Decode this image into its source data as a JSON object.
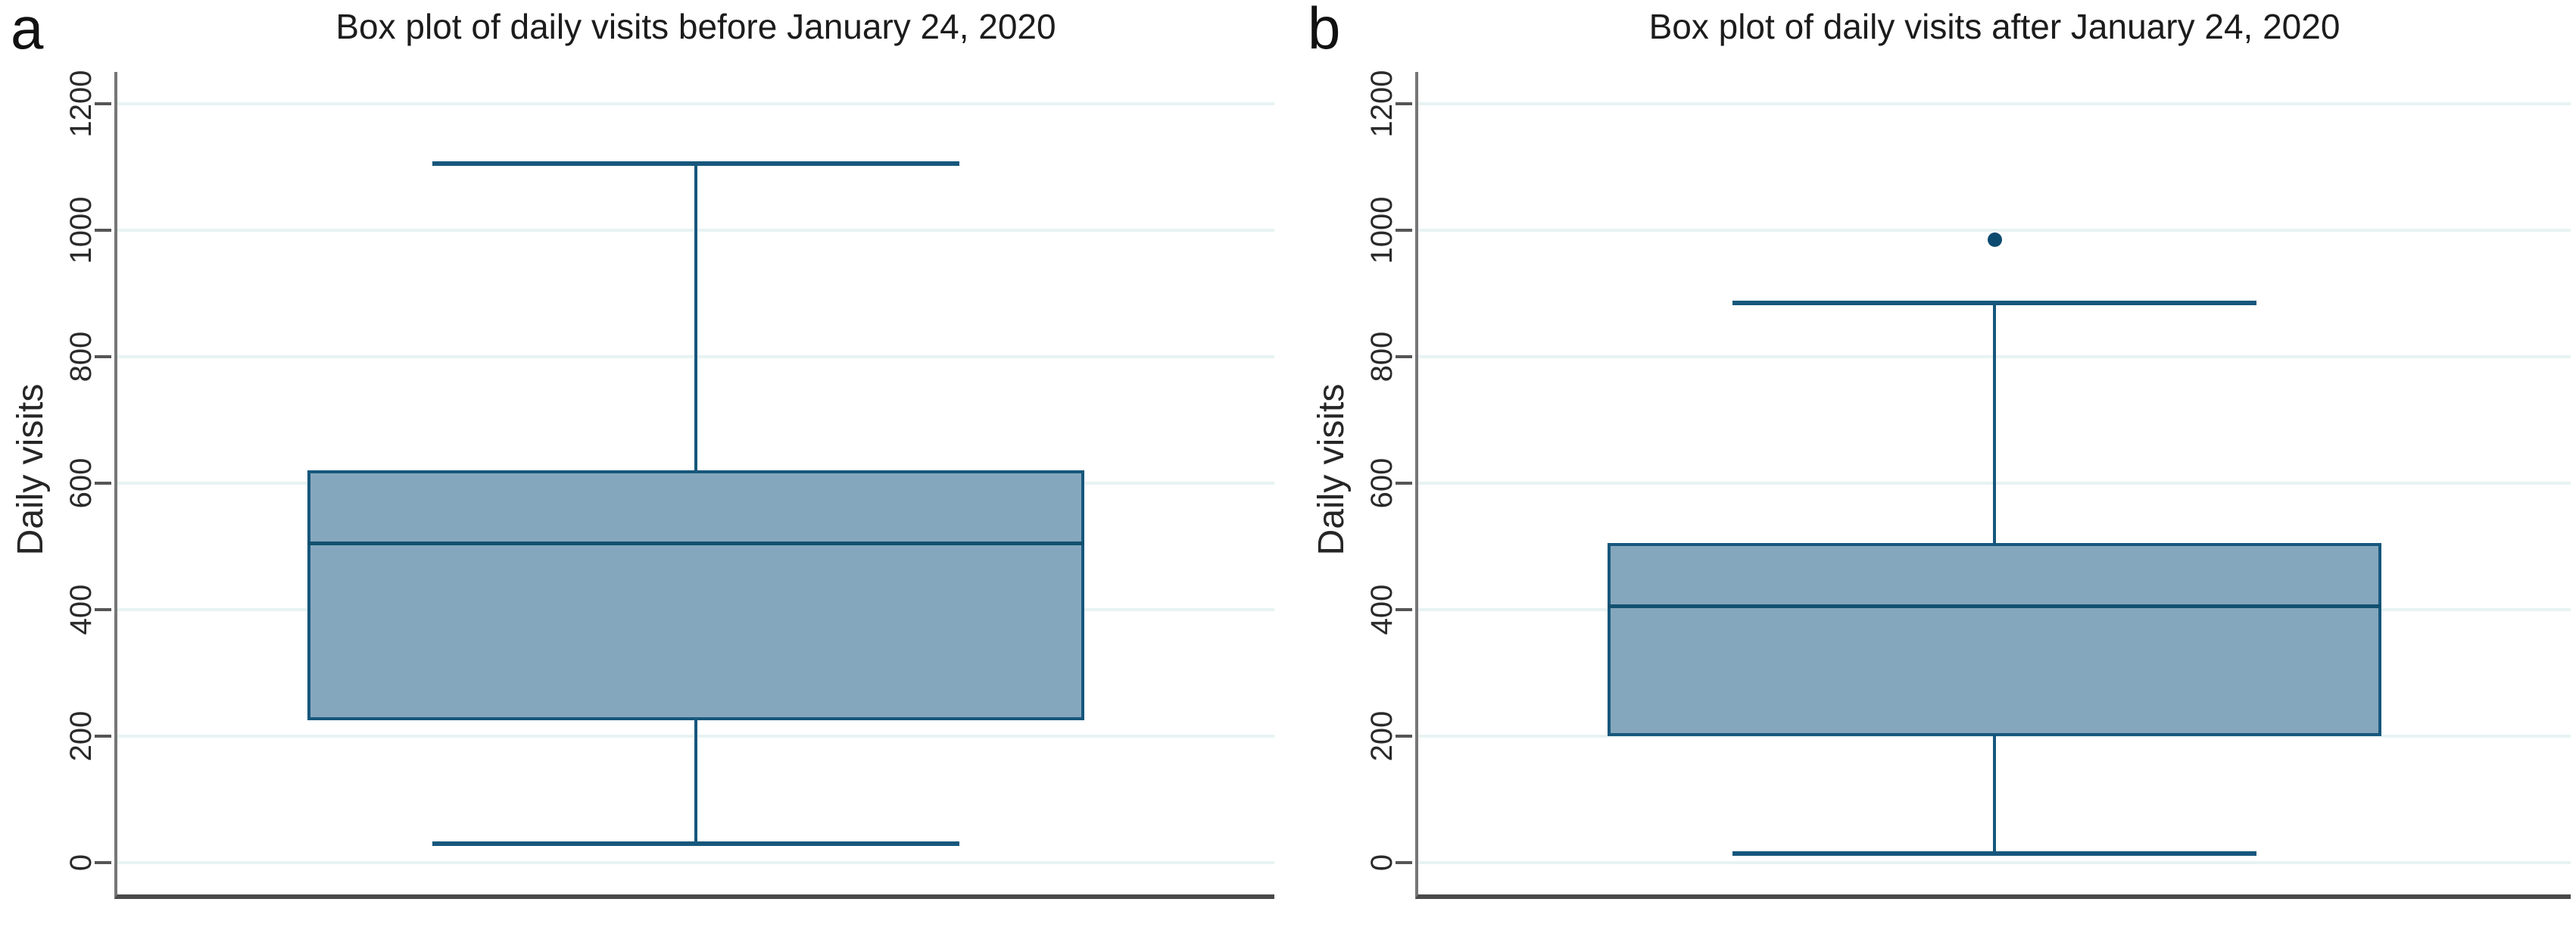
{
  "chart_data": [
    {
      "type": "box",
      "panel_label": "a",
      "title": "Box plot of daily visits before January 24, 2020",
      "ylabel": "Daily visits",
      "yticks": [
        0,
        200,
        400,
        600,
        800,
        1000,
        1200
      ],
      "ylim": [
        -50,
        1250
      ],
      "grid": true,
      "legend": "none",
      "box": {
        "whisker_low": 30,
        "q1": 225,
        "median": 505,
        "q3": 620,
        "whisker_high": 1105
      },
      "outliers": []
    },
    {
      "type": "box",
      "panel_label": "b",
      "title": "Box plot of daily visits after January 24, 2020",
      "ylabel": "Daily visits",
      "yticks": [
        0,
        200,
        400,
        600,
        800,
        1000,
        1200
      ],
      "ylim": [
        -50,
        1250
      ],
      "grid": true,
      "legend": "none",
      "box": {
        "whisker_low": 15,
        "q1": 200,
        "median": 405,
        "q3": 505,
        "whisker_high": 885
      },
      "outliers": [
        985
      ]
    }
  ],
  "colors": {
    "box_fill": "#85a7be",
    "box_border": "#17577c",
    "median": "#12506f",
    "whisker": "#17577c",
    "outlier": "#0d4a70",
    "gridline": "#e8f3f3",
    "y_axis": "#767676",
    "x_axis": "#4a4a4a",
    "tick": "#555555",
    "tick_text": "#2a2a2a"
  }
}
